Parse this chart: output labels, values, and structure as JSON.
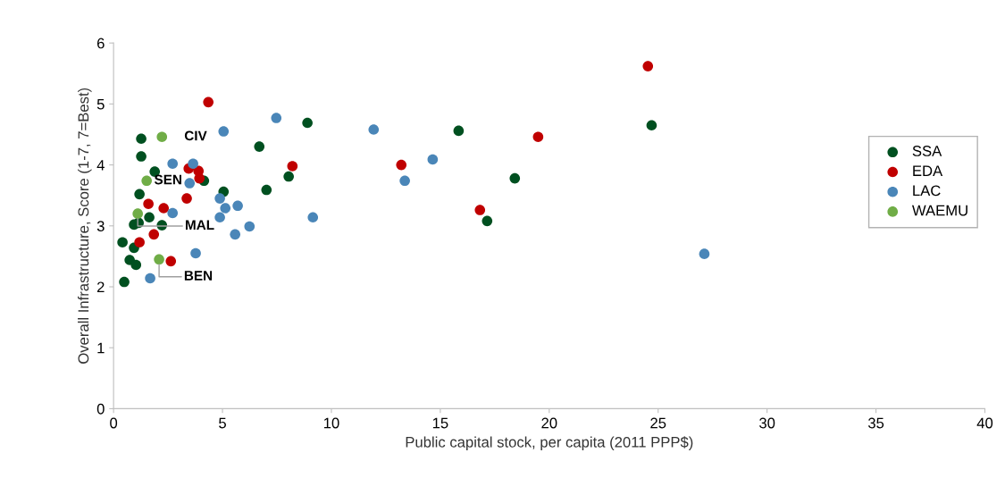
{
  "chart_data": {
    "type": "scatter",
    "xlabel": "Public capital stock, per capita (2011 PPP$)",
    "ylabel": "Overall Infrastructure, Score (1-7, 7=Best)",
    "xlim": [
      0,
      40
    ],
    "xticks": [
      0,
      5,
      10,
      15,
      20,
      25,
      30,
      35,
      40
    ],
    "ylim": [
      0,
      6
    ],
    "yticks": [
      0,
      1,
      2,
      3,
      4,
      5,
      6
    ],
    "grid": false,
    "legend": "right",
    "marker": "circle",
    "series": [
      {
        "name": "SSA",
        "color": "#005020",
        "x": [
          0.41,
          0.49,
          0.74,
          1.03,
          0.94,
          0.94,
          1.15,
          1.27,
          1.27,
          1.89,
          1.19,
          1.64,
          2.22,
          4.15,
          5.05,
          6.69,
          7.02,
          8.04,
          8.9,
          15.84,
          18.42,
          17.15,
          24.7
        ],
        "values": [
          2.73,
          2.08,
          2.44,
          2.36,
          2.64,
          3.02,
          3.05,
          4.43,
          4.14,
          3.89,
          3.52,
          3.14,
          3.01,
          3.74,
          3.56,
          4.3,
          3.59,
          3.81,
          4.69,
          4.56,
          3.78,
          3.08,
          4.65
        ]
      },
      {
        "name": "EDA",
        "color": "#c00000",
        "x": [
          4.35,
          8.21,
          3.45,
          3.9,
          3.94,
          3.36,
          1.6,
          2.3,
          1.85,
          1.19,
          2.63,
          13.21,
          16.82,
          19.49,
          24.53
        ],
        "values": [
          5.03,
          3.98,
          3.94,
          3.9,
          3.78,
          3.45,
          3.36,
          3.29,
          2.86,
          2.73,
          2.42,
          4.0,
          3.26,
          4.46,
          5.62
        ]
      },
      {
        "name": "LAC",
        "color": "#4a86b8",
        "x": [
          7.47,
          5.05,
          2.71,
          3.65,
          3.49,
          2.71,
          4.88,
          5.13,
          5.7,
          4.88,
          6.24,
          5.58,
          9.15,
          3.77,
          1.68,
          11.94,
          14.65,
          13.37,
          27.12
        ],
        "values": [
          4.77,
          4.55,
          4.02,
          4.02,
          3.7,
          3.21,
          3.45,
          3.29,
          3.33,
          3.14,
          2.99,
          2.86,
          3.14,
          2.55,
          2.14,
          4.58,
          4.09,
          3.74,
          2.54
        ]
      },
      {
        "name": "WAEMU",
        "color": "#70ad47",
        "x": [
          2.22,
          1.52,
          1.11,
          2.09
        ],
        "values": [
          4.46,
          3.74,
          3.2,
          2.45
        ]
      }
    ],
    "annotations": [
      {
        "text": "CIV",
        "x": 2.22,
        "y": 4.46
      },
      {
        "text": "SEN",
        "x": 1.52,
        "y": 3.74
      },
      {
        "text": "MAL",
        "x": 1.11,
        "y": 3.2
      },
      {
        "text": "BEN",
        "x": 2.09,
        "y": 2.45
      }
    ]
  }
}
